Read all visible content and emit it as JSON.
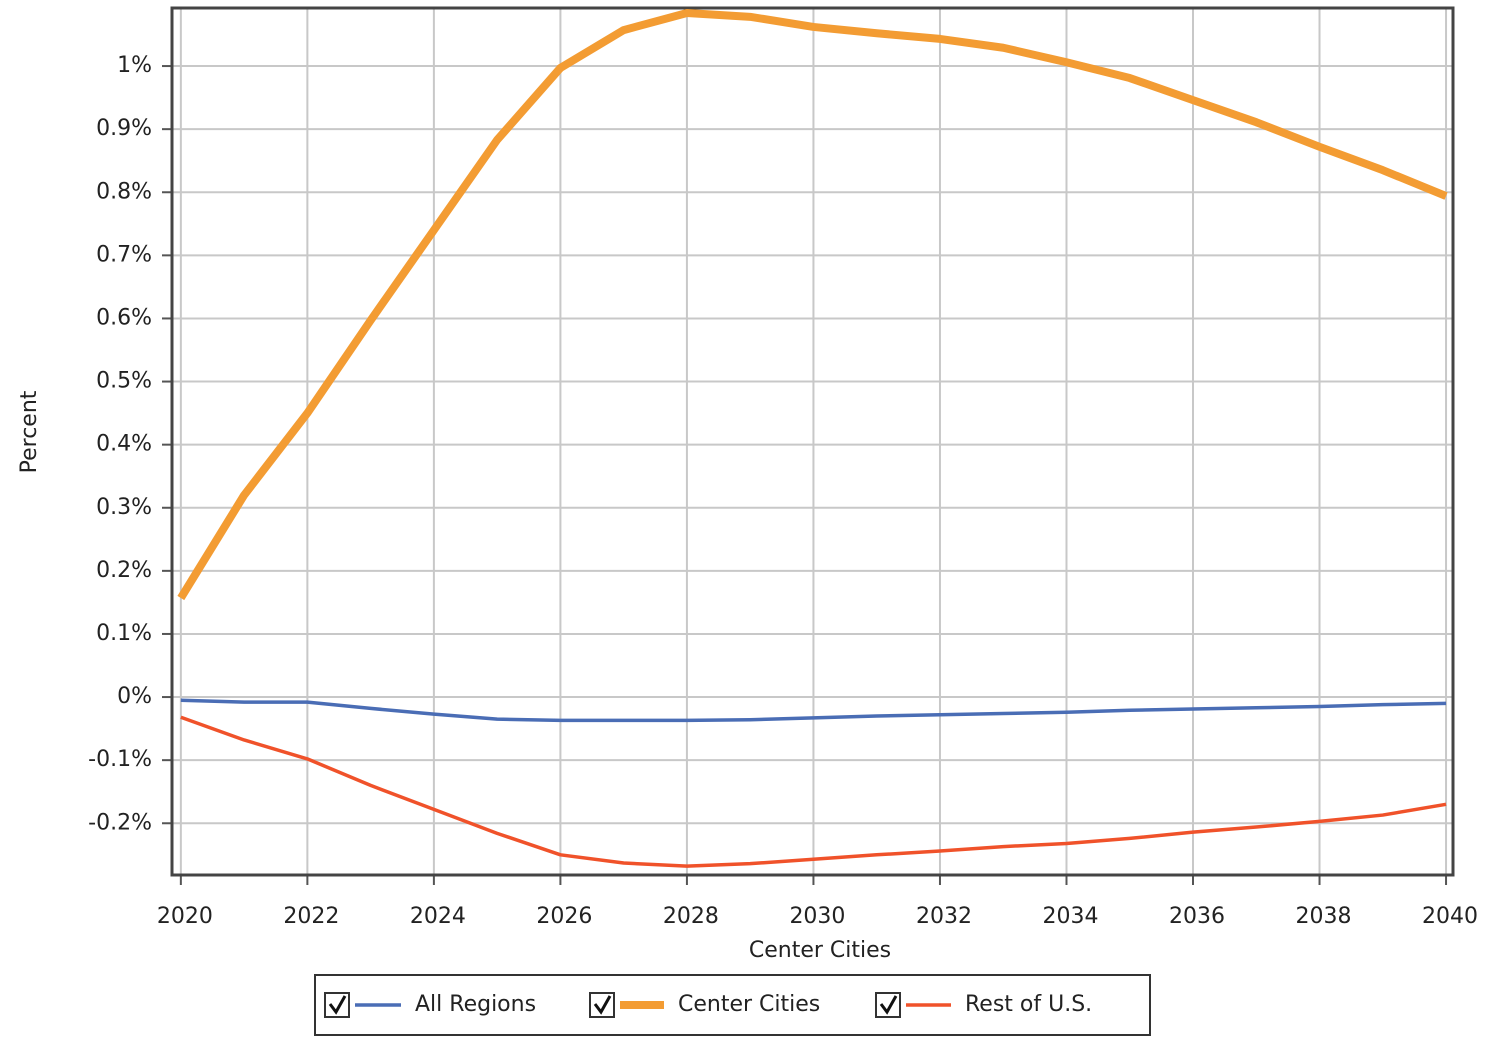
{
  "chart_data": {
    "type": "line",
    "x_label": "Center Cities",
    "y_label": "Percent",
    "x": [
      2020,
      2021,
      2022,
      2023,
      2024,
      2025,
      2026,
      2027,
      2028,
      2029,
      2030,
      2031,
      2032,
      2033,
      2034,
      2035,
      2036,
      2037,
      2038,
      2039,
      2040
    ],
    "series": [
      {
        "name": "All Regions",
        "color": "#4a6db5",
        "values": [
          -0.005,
          -0.008,
          -0.008,
          -0.018,
          -0.027,
          -0.035,
          -0.037,
          -0.037,
          -0.037,
          -0.036,
          -0.033,
          -0.03,
          -0.028,
          -0.026,
          -0.024,
          -0.021,
          -0.019,
          -0.017,
          -0.015,
          -0.012,
          -0.01
        ]
      },
      {
        "name": "Center Cities",
        "color": "#f39c33",
        "values": [
          0.157,
          0.32,
          0.45,
          0.597,
          0.74,
          0.883,
          0.997,
          1.057,
          1.084,
          1.078,
          1.062,
          1.052,
          1.043,
          1.029,
          1.006,
          0.981,
          0.946,
          0.911,
          0.872,
          0.835,
          0.794
        ]
      },
      {
        "name": "Rest of U.S.",
        "color": "#f0522a",
        "values": [
          -0.032,
          -0.068,
          -0.098,
          -0.14,
          -0.178,
          -0.216,
          -0.25,
          -0.263,
          -0.268,
          -0.264,
          -0.257,
          -0.25,
          -0.244,
          -0.237,
          -0.232,
          -0.224,
          -0.214,
          -0.206,
          -0.197,
          -0.187,
          -0.17
        ]
      }
    ],
    "xlim": [
      2019.86,
      2040.11
    ],
    "xticks": [
      2020,
      2022,
      2024,
      2026,
      2028,
      2030,
      2032,
      2034,
      2036,
      2038,
      2040
    ],
    "ylim": [
      -0.282,
      1.092
    ],
    "yticks": [
      {
        "value": -0.2,
        "label": "-0.2%"
      },
      {
        "value": -0.1,
        "label": "-0.1%"
      },
      {
        "value": 0,
        "label": "0%"
      },
      {
        "value": 0.1,
        "label": "0.1%"
      },
      {
        "value": 0.2,
        "label": "0.2%"
      },
      {
        "value": 0.3,
        "label": "0.3%"
      },
      {
        "value": 0.4,
        "label": "0.4%"
      },
      {
        "value": 0.5,
        "label": "0.5%"
      },
      {
        "value": 0.6,
        "label": "0.6%"
      },
      {
        "value": 0.7,
        "label": "0.7%"
      },
      {
        "value": 0.8,
        "label": "0.8%"
      },
      {
        "value": 0.9,
        "label": "0.9%"
      },
      {
        "value": 1,
        "label": "1%"
      }
    ],
    "grid": true,
    "legend": "bottom"
  }
}
